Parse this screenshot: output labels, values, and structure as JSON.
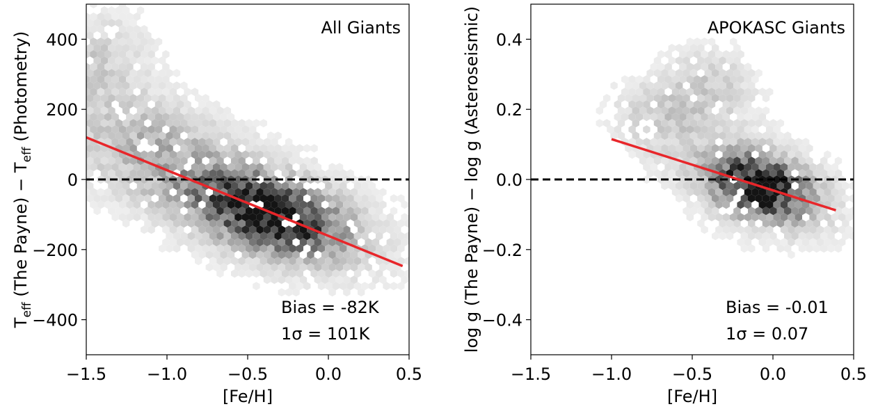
{
  "chart_data": [
    {
      "type": "hexbin",
      "panel_title": "All Giants",
      "xlabel": "[Fe/H]",
      "ylabel": {
        "parts": [
          {
            "text": "T",
            "sub": false
          },
          {
            "text": "eff",
            "sub": true
          },
          {
            "text": " (The Payne) − T",
            "sub": false
          },
          {
            "text": "eff",
            "sub": true
          },
          {
            "text": " (Photometry)",
            "sub": false
          }
        ]
      },
      "xlim": [
        -1.5,
        0.5
      ],
      "ylim": [
        -500,
        500
      ],
      "xticks": [
        -1.5,
        -1.0,
        -0.5,
        0.0,
        0.5
      ],
      "xtick_labels": [
        "−1.5",
        "−1.0",
        "−0.5",
        "0.0",
        "0.5"
      ],
      "yticks": [
        400,
        200,
        0,
        -200,
        -400
      ],
      "ytick_labels": [
        "400",
        "200",
        "0",
        "−200",
        "−400"
      ],
      "zero_line": 0,
      "fit_line": {
        "x": [
          -1.5,
          0.46
        ],
        "y": [
          120,
          -247
        ],
        "color": "#e8262a"
      },
      "density": {
        "center": [
          -0.38,
          -95
        ],
        "spread_x": 0.3,
        "spread_y": 75,
        "correlation": -0.45,
        "extra_tail": [
          [
            -1.5,
            300
          ],
          [
            -1.45,
            380
          ],
          [
            -1.3,
            130
          ],
          [
            -1.1,
            80
          ],
          [
            -0.9,
            60
          ]
        ]
      },
      "annotations": [
        "Bias = -82K",
        "1σ = 101K"
      ]
    },
    {
      "type": "hexbin",
      "panel_title": "APOKASC Giants",
      "xlabel": "[Fe/H]",
      "ylabel": {
        "parts": [
          {
            "text": "log g (The Payne) − log g (Asteroseismic)",
            "sub": false
          }
        ]
      },
      "xlim": [
        -1.5,
        0.5
      ],
      "ylim": [
        -0.5,
        0.5
      ],
      "xticks": [
        -1.5,
        -1.0,
        -0.5,
        0.0,
        0.5
      ],
      "xtick_labels": [
        "−1.5",
        "−1.0",
        "−0.5",
        "0.0",
        "0.5"
      ],
      "yticks": [
        0.4,
        0.2,
        0.0,
        -0.2,
        -0.4
      ],
      "ytick_labels": [
        "0.4",
        "0.2",
        "0.0",
        "−0.2",
        "−0.4"
      ],
      "zero_line": 0,
      "fit_line": {
        "x": [
          -1.0,
          0.39
        ],
        "y": [
          0.115,
          -0.088
        ],
        "color": "#e8262a"
      },
      "density": {
        "center": [
          -0.08,
          -0.02
        ],
        "spread_x": 0.2,
        "spread_y": 0.06,
        "correlation": -0.35,
        "extra_tail": [
          [
            -0.6,
            0.15
          ],
          [
            -0.8,
            0.2
          ],
          [
            -0.45,
            0.3
          ],
          [
            -0.3,
            0.25
          ]
        ]
      },
      "annotations": [
        "Bias = -0.01",
        "1σ = 0.07"
      ]
    }
  ]
}
